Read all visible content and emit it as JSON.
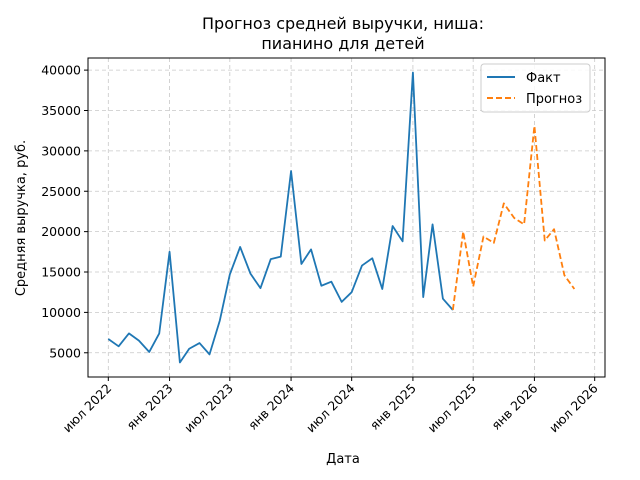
{
  "chart_data": {
    "type": "line",
    "title_lines": [
      "Прогноз средней выручки, ниша:",
      "пианино для детей"
    ],
    "xlabel": "Дата",
    "ylabel": "Средняя выручка, руб.",
    "x_ticks": [
      {
        "date": "2022-07-01",
        "label": "июл 2022"
      },
      {
        "date": "2023-01-01",
        "label": "янв 2023"
      },
      {
        "date": "2023-07-01",
        "label": "июл 2023"
      },
      {
        "date": "2024-01-01",
        "label": "янв 2024"
      },
      {
        "date": "2024-07-01",
        "label": "июл 2024"
      },
      {
        "date": "2025-01-01",
        "label": "янв 2025"
      },
      {
        "date": "2025-07-01",
        "label": "июл 2025"
      },
      {
        "date": "2026-01-01",
        "label": "янв 2026"
      },
      {
        "date": "2026-07-01",
        "label": "июл 2026"
      }
    ],
    "y_ticks": [
      5000,
      10000,
      15000,
      20000,
      25000,
      30000,
      35000,
      40000
    ],
    "xlim": [
      "2022-05-01",
      "2026-08-01"
    ],
    "ylim": [
      2000,
      41500
    ],
    "grid": true,
    "legend_position": "top-right",
    "colors": {
      "fact": "#1f77b4",
      "forecast": "#ff7f0e",
      "grid": "#c8c8c8"
    },
    "series": [
      {
        "name": "Факт",
        "style": "solid",
        "points": [
          {
            "x": "2022-07-01",
            "y": 6700
          },
          {
            "x": "2022-08-01",
            "y": 5800
          },
          {
            "x": "2022-09-01",
            "y": 7400
          },
          {
            "x": "2022-10-01",
            "y": 6500
          },
          {
            "x": "2022-11-01",
            "y": 5100
          },
          {
            "x": "2022-12-01",
            "y": 7400
          },
          {
            "x": "2023-01-01",
            "y": 17500
          },
          {
            "x": "2023-02-01",
            "y": 3800
          },
          {
            "x": "2023-03-01",
            "y": 5500
          },
          {
            "x": "2023-04-01",
            "y": 6200
          },
          {
            "x": "2023-05-01",
            "y": 4800
          },
          {
            "x": "2023-06-01",
            "y": 9000
          },
          {
            "x": "2023-07-01",
            "y": 14700
          },
          {
            "x": "2023-08-01",
            "y": 18100
          },
          {
            "x": "2023-09-01",
            "y": 14800
          },
          {
            "x": "2023-10-01",
            "y": 13000
          },
          {
            "x": "2023-11-01",
            "y": 16600
          },
          {
            "x": "2023-12-01",
            "y": 16900
          },
          {
            "x": "2024-01-01",
            "y": 27500
          },
          {
            "x": "2024-02-01",
            "y": 16000
          },
          {
            "x": "2024-03-01",
            "y": 17800
          },
          {
            "x": "2024-04-01",
            "y": 13300
          },
          {
            "x": "2024-05-01",
            "y": 13800
          },
          {
            "x": "2024-06-01",
            "y": 11300
          },
          {
            "x": "2024-07-01",
            "y": 12500
          },
          {
            "x": "2024-08-01",
            "y": 15800
          },
          {
            "x": "2024-09-01",
            "y": 16700
          },
          {
            "x": "2024-10-01",
            "y": 12900
          },
          {
            "x": "2024-11-01",
            "y": 20700
          },
          {
            "x": "2024-12-01",
            "y": 18800
          },
          {
            "x": "2025-01-01",
            "y": 39700
          },
          {
            "x": "2025-02-01",
            "y": 11900
          },
          {
            "x": "2025-03-01",
            "y": 20900
          },
          {
            "x": "2025-04-01",
            "y": 11700
          },
          {
            "x": "2025-05-01",
            "y": 10300
          }
        ]
      },
      {
        "name": "Прогноз",
        "style": "dashed",
        "points": [
          {
            "x": "2025-05-01",
            "y": 10300
          },
          {
            "x": "2025-06-01",
            "y": 20000
          },
          {
            "x": "2025-07-01",
            "y": 13200
          },
          {
            "x": "2025-08-01",
            "y": 19400
          },
          {
            "x": "2025-09-01",
            "y": 18600
          },
          {
            "x": "2025-10-01",
            "y": 23500
          },
          {
            "x": "2025-11-01",
            "y": 21700
          },
          {
            "x": "2025-12-01",
            "y": 20900
          },
          {
            "x": "2026-01-01",
            "y": 33100
          },
          {
            "x": "2026-02-01",
            "y": 18900
          },
          {
            "x": "2026-03-01",
            "y": 20300
          },
          {
            "x": "2026-04-01",
            "y": 14600
          },
          {
            "x": "2026-05-01",
            "y": 12900
          }
        ]
      }
    ]
  }
}
